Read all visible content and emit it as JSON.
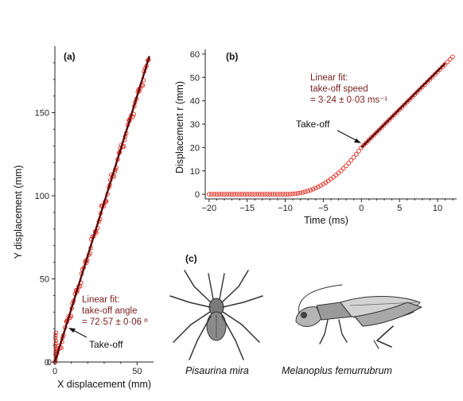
{
  "chart_data": [
    {
      "panel": "(a)",
      "type": "scatter",
      "xlabel": "X displacement (mm)",
      "ylabel": "Y displacement (mm)",
      "xlim": [
        0,
        60
      ],
      "ylim": [
        0,
        190
      ],
      "xticks": [
        0,
        50
      ],
      "yticks": [
        0,
        50,
        100,
        150
      ],
      "fit": {
        "x": [
          0,
          57.5
        ],
        "y": [
          0,
          184
        ]
      },
      "annotation": {
        "lines": [
          "Linear fit:",
          "take-off angle",
          "= 72·57 ± 0·06 º"
        ]
      },
      "callout": "Take-off"
    },
    {
      "panel": "(b)",
      "type": "scatter",
      "xlabel": "Time (ms)",
      "ylabel": "Displacement r (mm)",
      "xlim": [
        -20.5,
        12.5
      ],
      "ylim": [
        -2,
        62
      ],
      "xticks": [
        -20,
        -15,
        -10,
        -5,
        0,
        5,
        10
      ],
      "yticks": [
        0,
        10,
        20,
        30,
        40,
        50,
        60
      ],
      "fit": {
        "x": [
          0,
          11
        ],
        "y": [
          20,
          56
        ]
      },
      "annotation": {
        "lines": [
          "Linear fit:",
          "take-off speed",
          "= 3·24 ± 0·03 ms⁻¹"
        ]
      },
      "callout": "Take-off"
    }
  ],
  "panel_c": {
    "label": "(c)",
    "species": [
      "Pisaurina mira",
      "Melanoplus femurrubrum"
    ]
  },
  "colors": {
    "points": "#e3261b",
    "fit": "#5a0a0a",
    "annotation": "#7a1d1d"
  }
}
